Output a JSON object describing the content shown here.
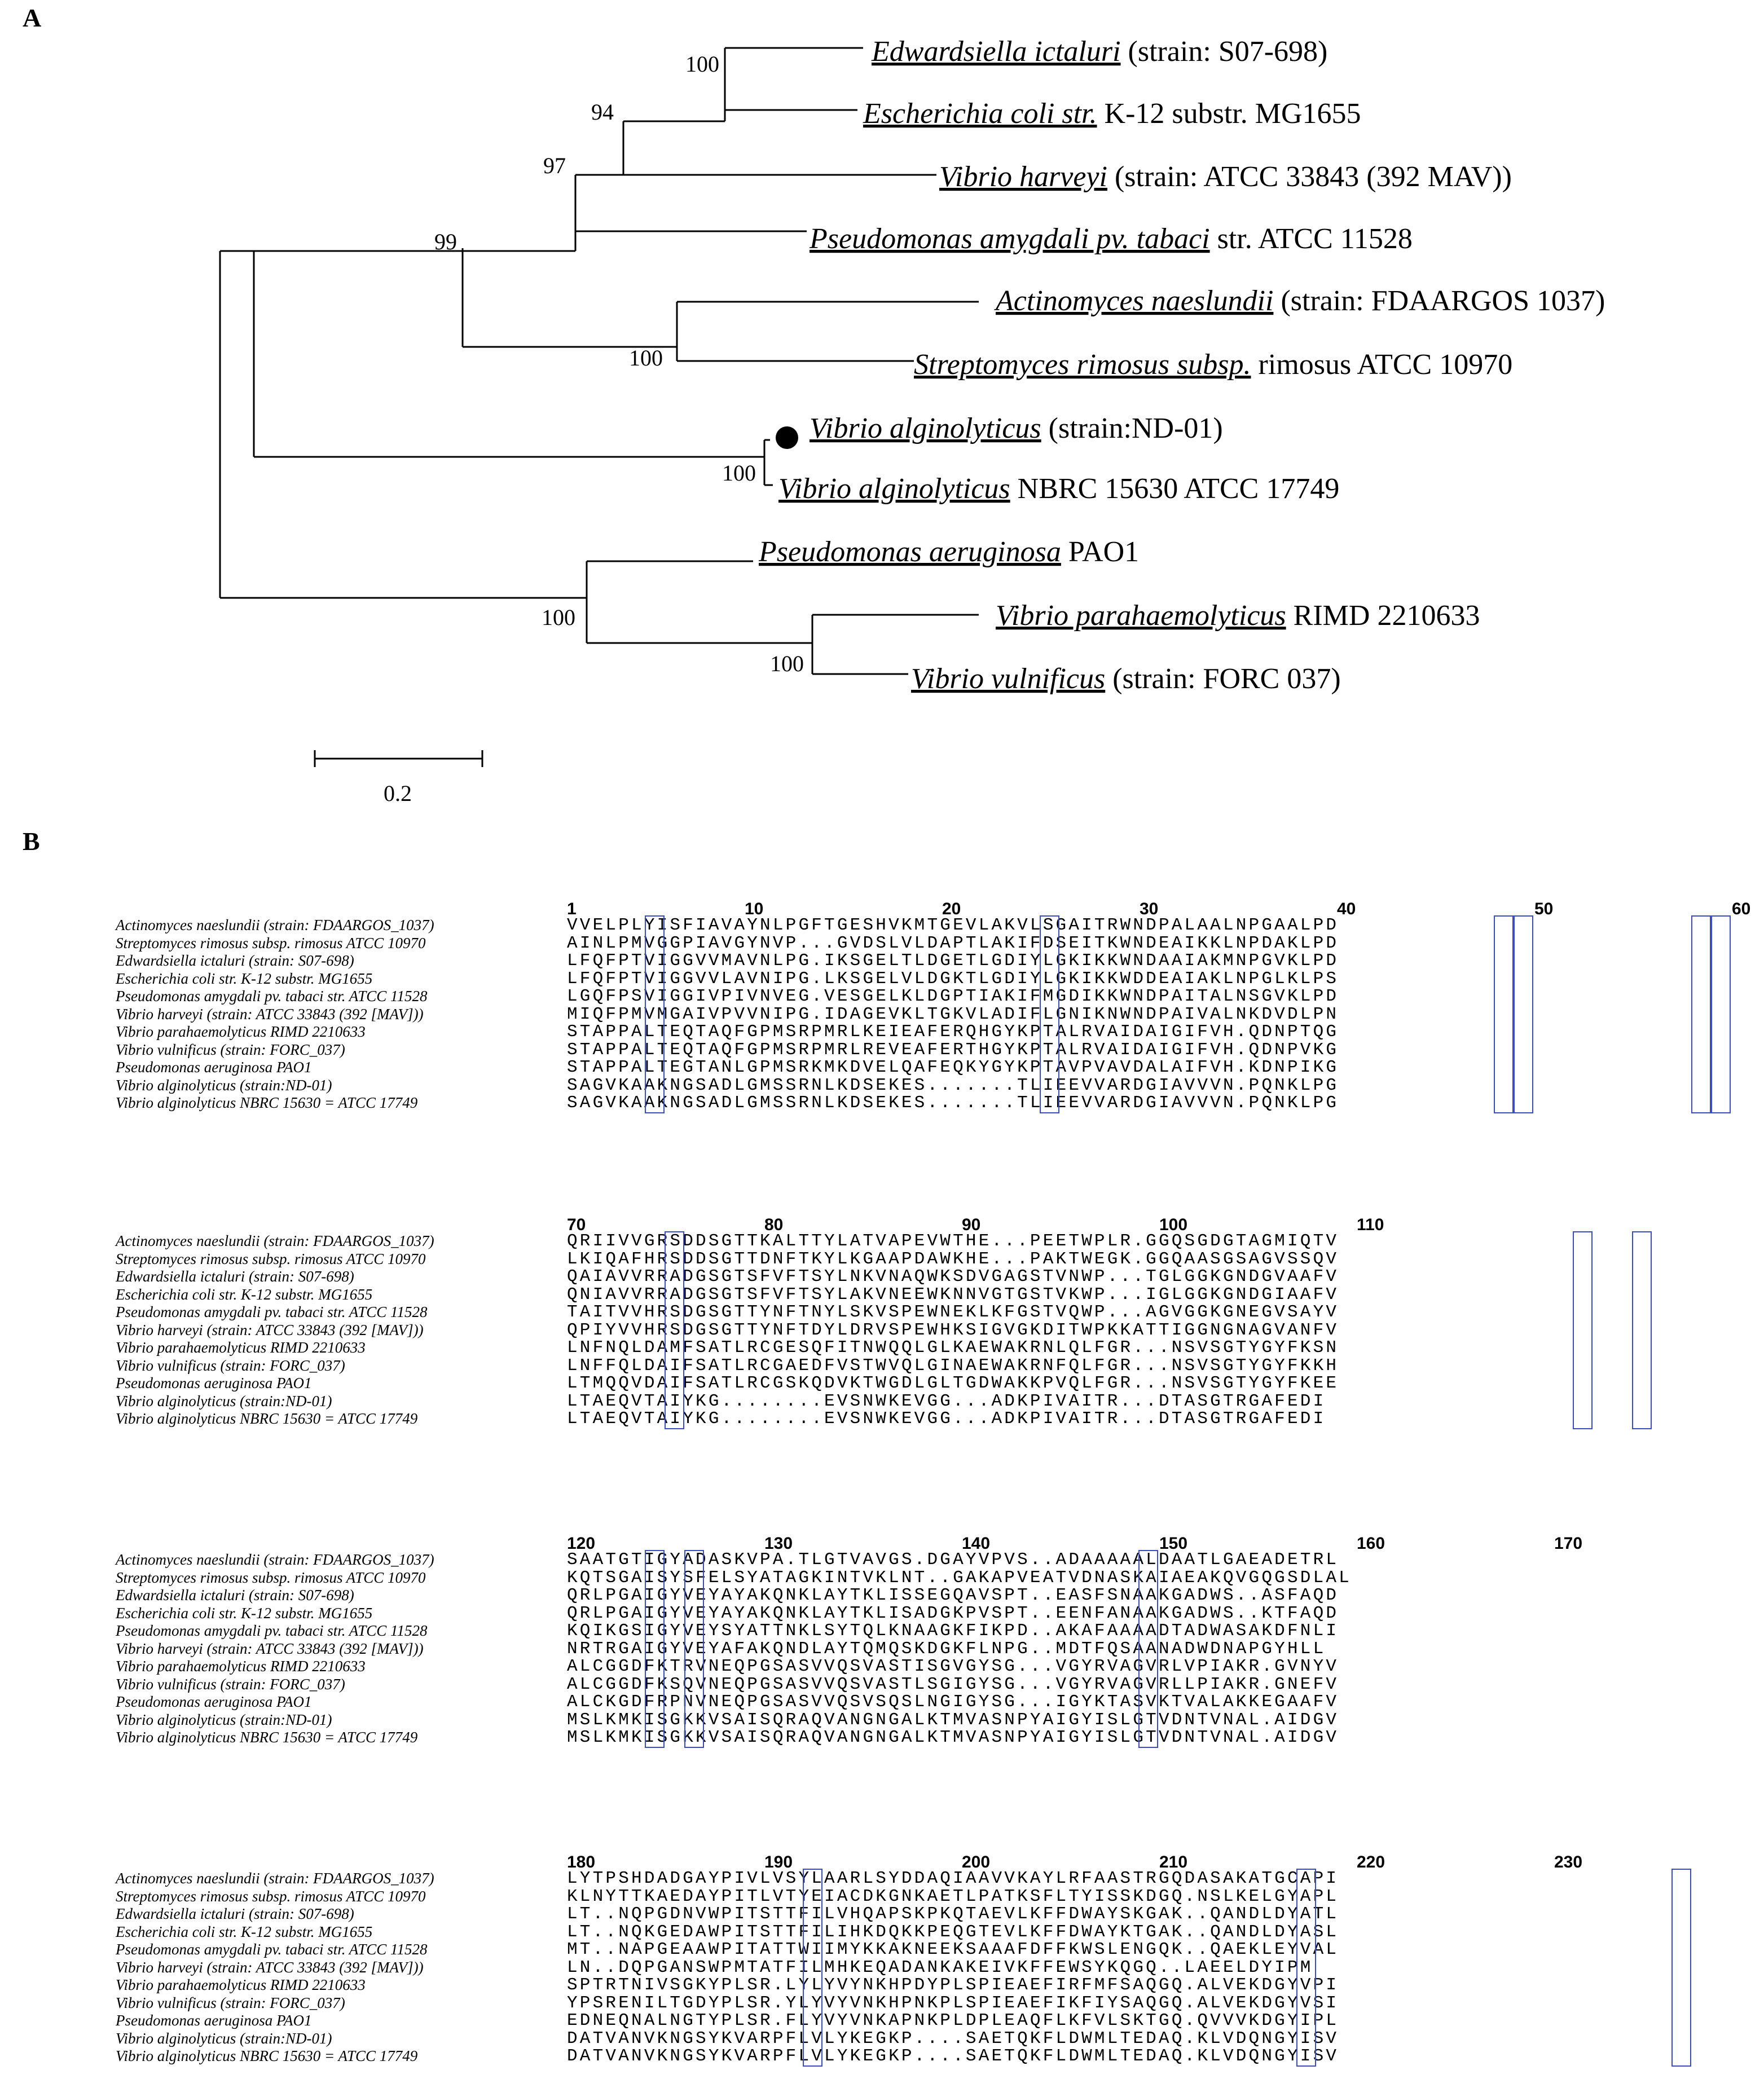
{
  "panel_a": {
    "label": "A",
    "taxa": [
      {
        "genus": "Edwardsiella ictaluri",
        "rest": " (strain: S07-698)"
      },
      {
        "genus": "Escherichia coli str.",
        "rest": " K-12 substr. MG1655"
      },
      {
        "genus": "Vibrio harveyi",
        "rest": " (strain: ATCC 33843 (392 MAV))"
      },
      {
        "genus": "Pseudomonas amygdali pv. tabaci",
        "rest": " str. ATCC 11528"
      },
      {
        "genus": "Actinomyces naeslundii",
        "rest": " (strain: FDAARGOS 1037)"
      },
      {
        "genus": "Streptomyces rimosus subsp.",
        "rest": " rimosus ATCC 10970"
      },
      {
        "genus": "Vibrio alginolyticus",
        "rest": " (strain:ND-01)"
      },
      {
        "genus": "Vibrio alginolyticus",
        "rest": " NBRC 15630 ATCC 17749"
      },
      {
        "genus": "Pseudomonas aeruginosa",
        "rest": " PAO1"
      },
      {
        "genus": "Vibrio parahaemolyticus",
        "rest": " RIMD 2210633"
      },
      {
        "genus": "Vibrio vulnificus",
        "rest": " (strain: FORC 037)"
      }
    ],
    "bootstrap": [
      "100",
      "94",
      "97",
      "99",
      "100",
      "100",
      "100",
      "100"
    ],
    "scale_label": "0.2"
  },
  "panel_b": {
    "label": "B",
    "species_long": [
      "Actinomyces naeslundii (strain: FDAARGOS_1037)",
      "Streptomyces rimosus subsp. rimosus ATCC 10970",
      "Edwardsiella ictaluri (strain: S07-698)",
      "Escherichia coli str. K-12 substr. MG1655",
      "Pseudomonas amygdali pv. tabaci str. ATCC 11528",
      "Vibrio harveyi (strain: ATCC 33843 (392 [MAV]))",
      "Vibrio parahaemolyticus RIMD 2210633",
      "Vibrio vulnificus (strain: FORC_037)",
      "Pseudomonas aeruginosa PAO1",
      "Vibrio alginolyticus (strain:ND-01)",
      "Vibrio alginolyticus NBRC 15630 = ATCC 17749"
    ],
    "blocks": [
      {
        "ruler": [
          "1",
          "10",
          "20",
          "30",
          "40",
          "50",
          "60"
        ],
        "seqs": [
          "VVELPLYISFIAVAYNLPGFTGESHVKMTGEVLAKVLSGAITRWNDPALAALNPGAALPD",
          "AINLPMVGGPIAVGYNVP...GVDSLVLDAPTLAKIFDSEITKWNDEAIKKLNPDAKLPD",
          "LFQFPTVIGGVVMAVNLPG.IKSGELTLDGETLGDIYLGKIKKWNDAAIAKMNPGVKLPD",
          "LFQFPTVIGGVVLAVNIPG.LKSGELVLDGKTLGDIYLGKIKKWDDEAIAKLNPGLKLPS",
          "LGQFPSVIGGIVPIVNVEG.VESGELKLDGPTIAKIFMGDIKKWNDPAITALNSGVKLPD",
          "MIQFPMVMGAIVPVVNIPG.IDAGEVKLTGKVLADIFLGNIKNWNDPAIVALNKDVDLPN",
          "STAPPALTEQTAQFGPMSRPMRLKEIEAFERQHGYKPTALRVAIDAIGIFVH.QDNPTQG",
          "STAPPALTEQTAQFGPMSRPMRLREVEAFERTHGYKPTALRVAIDAIGIFVH.QDNPVKG",
          "STAPPALTEGTANLGPMSRKMKDVELQAFEQKYGYKPTAVPVAVDALAIFVH.KDNPIKG",
          "SAGVKAAKNGSADLGMSSRNLKDSEKES.......TLIEEVVARDGIAVVVN.PQNKLPG",
          "SAGVKAAKNGSADLGMSSRNLKDSEKES.......TLIEEVVARDGIAVVVN.PQNKLPG"
        ]
      },
      {
        "ruler": [
          "70",
          "80",
          "90",
          "100",
          "110"
        ],
        "seqs": [
          "QRIIVVGRSDDSGTTKALTTYLATVAPEVWTHE...PEETWPLR.GGQSGDGTAGMIQTV",
          "LKIQAFHRSDDSGTTDNFTKYLKGAAPDAWKHE...PAKTWEGK.GGQAASGSAGVSSQV",
          "QAIAVVRRADGSGTSFVFTSYLNKVNAQWKSDVGAGSTVNWP...TGLGGKGNDGVAAFV",
          "QNIAVVRRADGSGTSFVFTSYLAKVNEEWKNNVGTGSTVKWP...IGLGGKGNDGIAAFV",
          "TAITVVHRSDGSGTTYNFTNYLSKVSPEWNEKLKFGSTVQWP...AGVGGKGNEGVSAYV",
          "QPIYVVHRSDGSGTTYNFTDYLDRVSPEWHKSIGVGKDITWPKKATTIGGNGNAGVANFV",
          "LNFNQLDAMFSATLRCGESQFITNWQQLGLKAEWAKRNLQLFGR...NSVSGTYGYFKSN",
          "LNFFQLDAIFSATLRCGAEDFVSTWVQLGINAEWAKRNFQLFGR...NSVSGTYGYFKKH",
          "LTMQQVDAIFSATLRCGSKQDVKTWGDLGLTGDWAKKPVQLFGR...NSVSGTYGYFKEE",
          "LTAEQVTAIYKG........EVSNWKEVGG...ADKPIVAITR...DTASGTRGAFEDI",
          "LTAEQVTAIYKG........EVSNWKEVGG...ADKPIVAITR...DTASGTRGAFEDI"
        ]
      },
      {
        "ruler": [
          "120",
          "130",
          "140",
          "150",
          "160",
          "170"
        ],
        "seqs": [
          "SAATGTIGYADASKVPA.TLGTVAVGS.DGAYVPVS..ADAAAAALDAATLGAEADETRL",
          "KQTSGAISYSFELSYATAGKINTVKLNT..GAKAPVEATVDNASKAIAEAKQVGQGSDLAL",
          "QRLPGAIGYVEYAYAKQNKLAYTKLISSEGQAVSPT..EASFSNAAKGADWS..ASFAQD",
          "QRLPGAIGYVEYAYAKQNKLAYTKLISADGKPVSPT..EENFANAAKGADWS..KTFAQD",
          "KQIKGSIGYVEYSYATTNKLSYTQLKNAAGKFIKPD..AKAFAAAADTADWASAKDFNLI",
          "NRTRGAIGYVEYAFAKQNDLAYTQMQSKDGKFLNPG..MDTFQSAANADWDNAPGYHLL",
          "ALCGGDFKTRVNEQPGSASVVQSVASTISGVGYSG...VGYRVAGVRLVPIAKR.GVNYV",
          "ALCGGDFKSQVNEQPGSASVVQSVASTLSGIGYSG...VGYRVAGVRLLPIAKR.GNEFV",
          "ALCKGDFRPNVNEQPGSASVVQSVSQSLNGIGYSG...IGYKTASVKTVALAKKEGAAFV",
          "MSLKMKISGKKVSAISQRAQVANGNGALKTMVASNPYAIGYISLGTVDNTVNAL.AIDGV",
          "MSLKMKISGKKVSAISQRAQVANGNGALKTMVASNPYAIGYISLGTVDNTVNAL.AIDGV"
        ]
      },
      {
        "ruler": [
          "180",
          "190",
          "200",
          "210",
          "220",
          "230"
        ],
        "seqs": [
          "LYTPSHDADGAYPIVLVSYLAARLSYDDAQIAAVVKAYLRFAASTRGQDASAKATGCAPI",
          "KLNYTTKAEDAYPITLVTYEIACDKGNKAETLPATKSFLTYISSKDGQ.NSLKELGYAPL",
          "LT..NQPGDNVWPITSTTFILVHQAPSKPKQTAEVLKFFDWAYSKGAK..QANDLDYATL",
          "LT..NQKGEDAWPITSTTFILIHKDQKKPEQGTEVLKFFDWAYKTGAK..QANDLDYASL",
          "MT..NAPGEAAWPITATTWIIMYKKAKNEEKSAAAFDFFKWSLENGQK..QAEKLEYVAL",
          "LN..DQPGANSWPMTATFILMHKEQADANKAKEIVKFFEWSYKQGQ..LAEELDYIPM",
          "SPTRTNIVSGKYPLSR.LYLYVYNKHPDYPLSPIEAEFIRFMFSAQGQ.ALVEKDGYVPI",
          "YPSRENILTGDYPLSR.YLYVYVNKHPNKPLSPIEAEFIKFIYSAQGQ.ALVEKDGYVSI",
          "EDNEQNALNGTYPLSR.FLYVYVNKAPNKPLDPLEAQFLKFVLSKTGQ.QVVVKDGYIPL",
          "DATVANVKNGSYKVARPFLVLYKEGKP....SAETQKFLDWMLTEDAQ.KLVDQNGYISV",
          "DATVANVKNGSYKVARPFLVLYKEGKP....SAETQKFLDWMLTEDAQ.KLVDQNGYISV"
        ]
      }
    ]
  }
}
